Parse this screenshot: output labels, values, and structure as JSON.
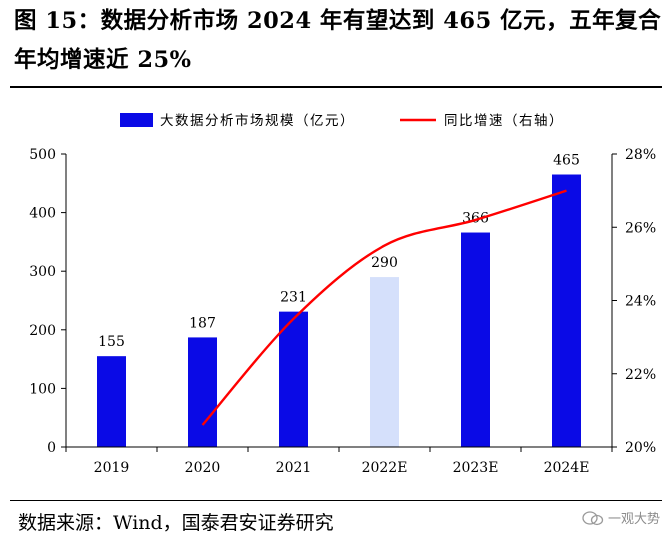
{
  "figure": {
    "title": "图 15：数据分析市场 2024 年有望达到 465 亿元，五年复合年均增速近 25%",
    "source": "数据来源：Wind，国泰君安证券研究"
  },
  "watermark": {
    "text": "一观大势"
  },
  "colors": {
    "bar": "#0a0ae6",
    "bar_estimate_light": "#d5e0fb",
    "line": "#ff0000",
    "axis": "#000000"
  },
  "chart_data": {
    "type": "bar",
    "categories": [
      "2019",
      "2020",
      "2021",
      "2022E",
      "2023E",
      "2024E"
    ],
    "series": [
      {
        "name": "大数据分析市场规模（亿元）",
        "type": "bar",
        "axis": "left",
        "values": [
          155,
          187,
          231,
          290,
          366,
          465
        ],
        "data_labels": [
          "155",
          "187",
          "231",
          "290",
          "366",
          "465"
        ],
        "light_fill": [
          false,
          false,
          false,
          true,
          false,
          false
        ]
      },
      {
        "name": "同比增速（右轴）",
        "type": "line",
        "axis": "right",
        "values": [
          null,
          20.6,
          23.5,
          25.5,
          26.2,
          27.0
        ]
      }
    ],
    "y_left": {
      "min": 0,
      "max": 500,
      "ticks": [
        0,
        100,
        200,
        300,
        400,
        500
      ],
      "tick_labels": [
        "0",
        "100",
        "200",
        "300",
        "400",
        "500"
      ]
    },
    "y_right": {
      "min": 20,
      "max": 28,
      "ticks": [
        20,
        22,
        24,
        26,
        28
      ],
      "tick_labels": [
        "20%",
        "22%",
        "24%",
        "26%",
        "28%"
      ]
    },
    "legend": "top",
    "grid": false
  }
}
